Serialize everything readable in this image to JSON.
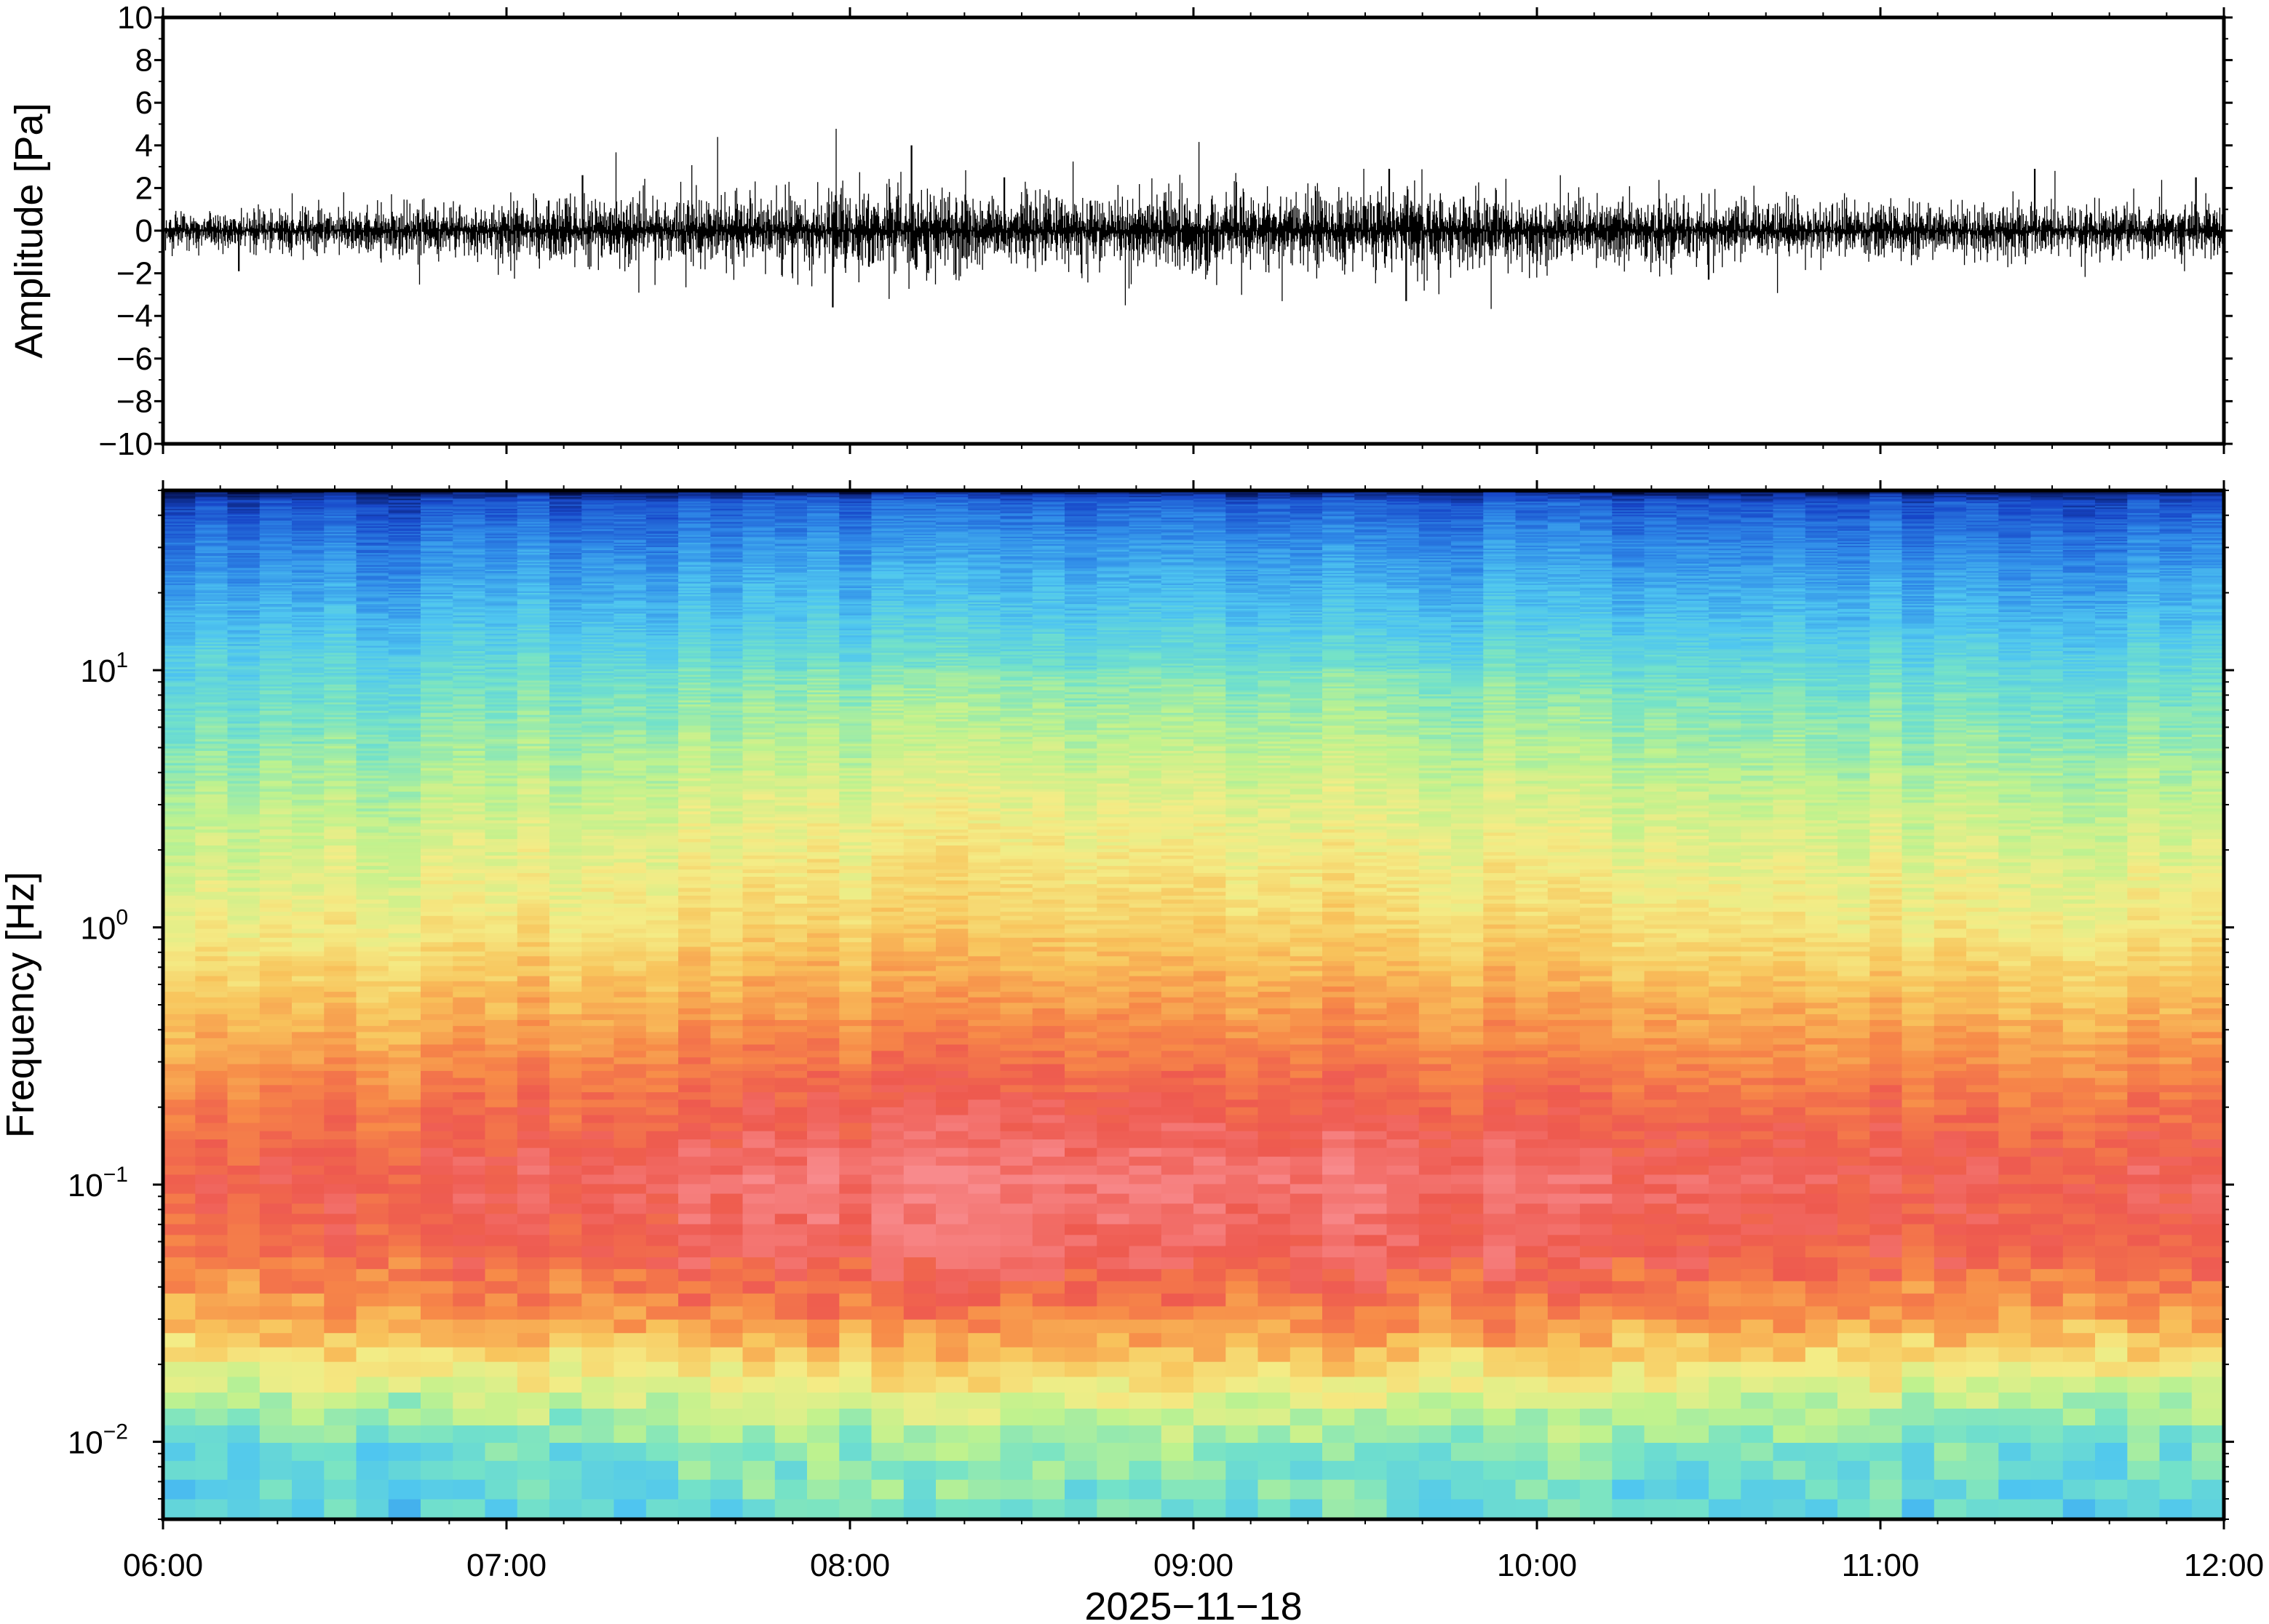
{
  "chart_data": [
    {
      "type": "line",
      "panel": "waveform",
      "ylabel": "Amplitude [Pa]",
      "ylim": [
        -10,
        10
      ],
      "yticks": [
        "10",
        "8",
        "6",
        "4",
        "2",
        "0",
        "−2",
        "−4",
        "−6",
        "−8",
        "−10"
      ],
      "ytick_values": [
        10,
        8,
        6,
        4,
        2,
        0,
        -2,
        -4,
        -6,
        -8,
        -10
      ],
      "xlim": [
        "06:00",
        "12:00"
      ],
      "color": "#000000",
      "envelope": {
        "hours": [
          6.0,
          6.5,
          7.0,
          7.25,
          7.5,
          8.0,
          8.2,
          8.5,
          9.0,
          9.5,
          9.6,
          10.0,
          10.5,
          11.0,
          11.5,
          12.0
        ],
        "typical_amplitude": [
          0.5,
          0.6,
          0.8,
          0.9,
          0.9,
          1.0,
          1.1,
          1.0,
          1.0,
          1.05,
          1.1,
          0.9,
          0.8,
          0.7,
          0.7,
          0.75
        ],
        "peaks": [
          {
            "hour": 6.22,
            "value": -1.9
          },
          {
            "hour": 7.22,
            "value": 2.6
          },
          {
            "hour": 7.95,
            "value": -3.6
          },
          {
            "hour": 8.18,
            "value": 4.0
          },
          {
            "hour": 8.45,
            "value": 2.5
          },
          {
            "hour": 9.57,
            "value": 2.9
          },
          {
            "hour": 9.62,
            "value": -3.3
          },
          {
            "hour": 10.5,
            "value": -2.3
          },
          {
            "hour": 11.45,
            "value": 2.9
          },
          {
            "hour": 11.92,
            "value": 2.5
          }
        ]
      }
    },
    {
      "type": "heatmap",
      "panel": "spectrogram",
      "ylabel": "Frequency [Hz]",
      "yscale": "log",
      "ylim_hz": [
        0.005,
        50
      ],
      "ytick_labels": [
        {
          "base": "10",
          "exp": "1",
          "value": 10
        },
        {
          "base": "10",
          "exp": "0",
          "value": 1
        },
        {
          "base": "10",
          "exp": "−1",
          "value": 0.1
        },
        {
          "base": "10",
          "exp": "−2",
          "value": 0.01
        }
      ],
      "colormap": "spectral (low=blue/cyan, mid=yellow, high=red/pink)",
      "color_stops": [
        "#020a3c",
        "#1746c8",
        "#2f8ae8",
        "#4fc6f0",
        "#74e2c8",
        "#bff28e",
        "#f4ec86",
        "#f8c45c",
        "#f78a48",
        "#ee5a4f",
        "#f88a8c"
      ],
      "frequency_profile": [
        {
          "hz": 50,
          "level": 0.0
        },
        {
          "hz": 45,
          "level": 0.12
        },
        {
          "hz": 30,
          "level": 0.2
        },
        {
          "hz": 15,
          "level": 0.3
        },
        {
          "hz": 8,
          "level": 0.4
        },
        {
          "hz": 3,
          "level": 0.52
        },
        {
          "hz": 1,
          "level": 0.62
        },
        {
          "hz": 0.5,
          "level": 0.72
        },
        {
          "hz": 0.2,
          "level": 0.85
        },
        {
          "hz": 0.1,
          "level": 0.92
        },
        {
          "hz": 0.05,
          "level": 0.88
        },
        {
          "hz": 0.03,
          "level": 0.78
        },
        {
          "hz": 0.02,
          "level": 0.65
        },
        {
          "hz": 0.013,
          "level": 0.5
        },
        {
          "hz": 0.008,
          "level": 0.38
        },
        {
          "hz": 0.005,
          "level": 0.35
        }
      ],
      "time_activity": {
        "hours": [
          6.0,
          7.0,
          8.0,
          8.5,
          9.0,
          9.5,
          10.0,
          11.0,
          12.0
        ],
        "offset": [
          -0.04,
          0.0,
          0.05,
          0.06,
          0.04,
          0.06,
          0.02,
          0.0,
          -0.01
        ]
      }
    }
  ],
  "xaxis": {
    "ticks": [
      "06:00",
      "07:00",
      "08:00",
      "09:00",
      "10:00",
      "11:00",
      "12:00"
    ],
    "tick_hours": [
      6,
      7,
      8,
      9,
      10,
      11,
      12
    ],
    "date_label": "2025−11−18"
  }
}
